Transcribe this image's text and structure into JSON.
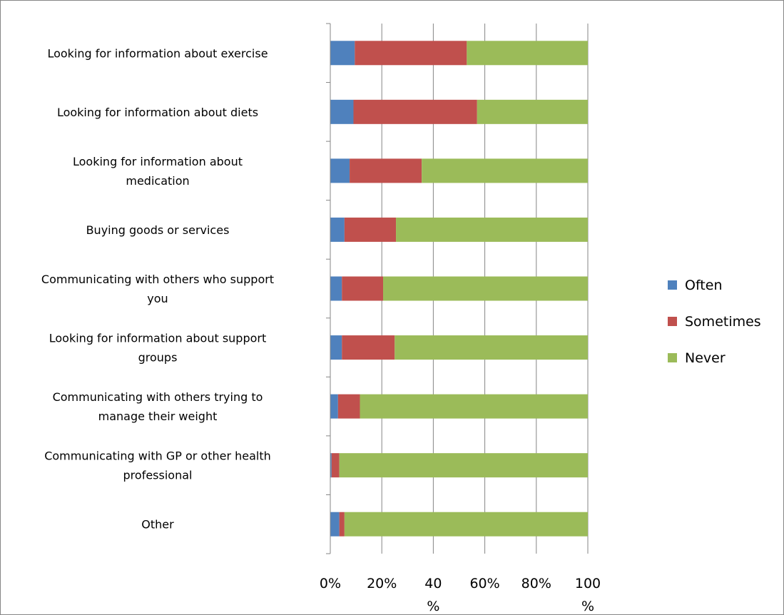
{
  "chart_data": {
    "type": "bar",
    "orientation": "horizontal",
    "stacked": true,
    "percent_stacked": true,
    "title": "",
    "xlabel": "",
    "ylabel": "",
    "xlim": [
      0,
      100
    ],
    "grid": true,
    "legend_position": "right",
    "categories": [
      "Looking for information about exercise",
      "Looking for information about diets",
      "Looking for information about medication",
      "Buying goods or services",
      "Communicating with others who support you",
      "Looking for information about support groups",
      "Communicating with others trying to manage their weight",
      "Communicating with GP or other health professional",
      "Other"
    ],
    "category_lines": [
      [
        "Looking for information about exercise"
      ],
      [
        "Looking for information about diets"
      ],
      [
        "Looking for information about",
        "medication"
      ],
      [
        "Buying goods or services"
      ],
      [
        "Communicating with others who support",
        "you"
      ],
      [
        "Looking for information about support",
        "groups"
      ],
      [
        "Communicating with others trying to",
        "manage their weight"
      ],
      [
        "Communicating with GP or other health",
        "professional"
      ],
      [
        "Other"
      ]
    ],
    "series": [
      {
        "name": "Often",
        "color": "#4F81BD",
        "values": [
          9.5,
          9,
          7.5,
          5.5,
          4.5,
          4.5,
          3,
          0.5,
          3.5
        ]
      },
      {
        "name": "Sometimes",
        "color": "#C0504D",
        "values": [
          43.5,
          48,
          28,
          20,
          16,
          20.5,
          8.5,
          3,
          2
        ]
      },
      {
        "name": "Never",
        "color": "#9BBB59",
        "values": [
          47,
          43,
          64.5,
          74.5,
          79.5,
          75,
          88.5,
          96.5,
          94.5
        ]
      }
    ],
    "tick_labels": [
      [
        "0%"
      ],
      [
        "20%"
      ],
      [
        "40",
        "%"
      ],
      [
        "60%"
      ],
      [
        "80%"
      ],
      [
        "100",
        "%"
      ]
    ]
  }
}
